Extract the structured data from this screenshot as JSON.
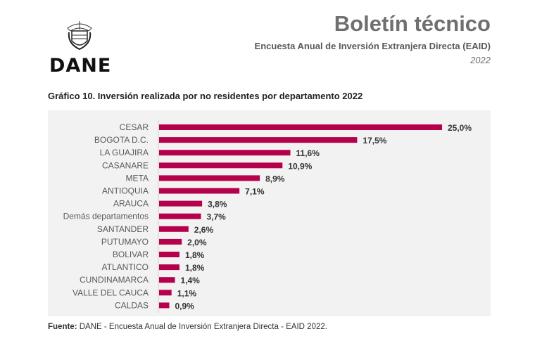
{
  "header": {
    "title": "Boletín técnico",
    "subtitle": "Encuesta Anual de Inversión Extranjera Directa (EAID)",
    "year": "2022",
    "logo_text": "DANE"
  },
  "chart_data": {
    "type": "bar",
    "orientation": "horizontal",
    "title": "Gráfico 10. Inversión realizada por no residentes por departamento 2022",
    "categories": [
      "CESAR",
      "BOGOTA D.C.",
      "LA GUAJIRA",
      "CASANARE",
      "META",
      "ANTIOQUIA",
      "ARAUCA",
      "Demás departamentos",
      "SANTANDER",
      "PUTUMAYO",
      "BOLIVAR",
      "ATLANTICO",
      "CUNDINAMARCA",
      "VALLE DEL CAUCA",
      "CALDAS"
    ],
    "values": [
      25.0,
      17.5,
      11.6,
      10.9,
      8.9,
      7.1,
      3.8,
      3.7,
      2.6,
      2.0,
      1.8,
      1.8,
      1.4,
      1.1,
      0.9
    ],
    "data_labels": [
      "25,0%",
      "17,5%",
      "11,6%",
      "10,9%",
      "8,9%",
      "7,1%",
      "3,8%",
      "3,7%",
      "2,6%",
      "2,0%",
      "1,8%",
      "1,8%",
      "1,4%",
      "1,1%",
      "0,9%"
    ],
    "unit": "%",
    "xlim": [
      0,
      25
    ],
    "grid": false,
    "legend": "none",
    "bar_color": "#b5004b",
    "background": "#f2f2f2"
  },
  "footer": {
    "source_label": "Fuente:",
    "source_text": " DANE - Encuesta Anual de Inversión Extranjera Directa - EAID 2022."
  }
}
